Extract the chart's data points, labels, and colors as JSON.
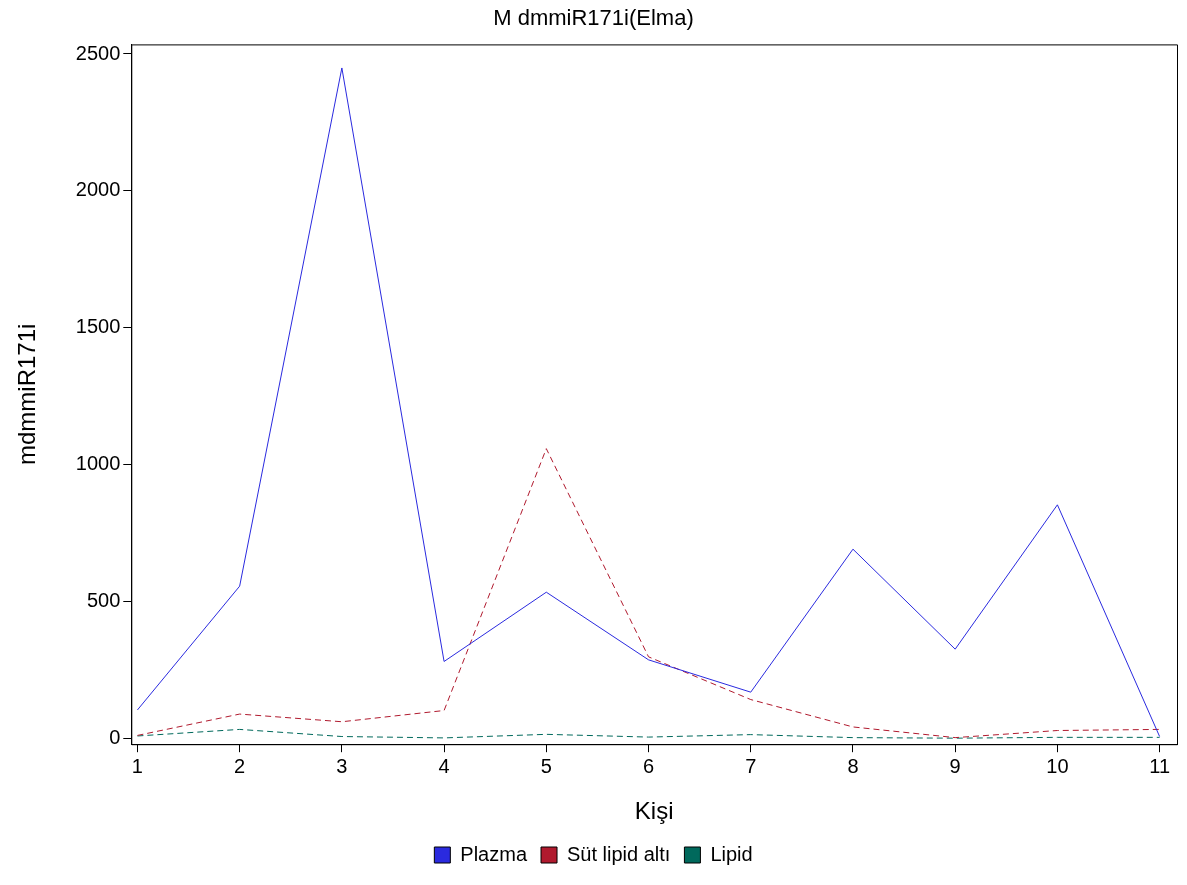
{
  "chart_data": {
    "type": "line",
    "title": "M dmmiR171i(Elma)",
    "xlabel": "Kişi",
    "ylabel": "mdmmiR171i",
    "x": [
      1,
      2,
      3,
      4,
      5,
      6,
      7,
      8,
      9,
      10,
      11
    ],
    "series": [
      {
        "name": "Plazma",
        "color": "#2a2adf",
        "line_style": "solid",
        "values": [
          105,
          557,
          2449,
          282,
          535,
          288,
          170,
          692,
          327,
          854,
          8
        ]
      },
      {
        "name": "Süt lipid altı",
        "color": "#b01a2e",
        "line_style": "dashed",
        "values": [
          12,
          90,
          62,
          103,
          1059,
          299,
          143,
          43,
          4,
          30,
          34
        ]
      },
      {
        "name": "Lipid",
        "color": "#00695c",
        "line_style": "dashed",
        "values": [
          10,
          34,
          8,
          3,
          16,
          6,
          15,
          4,
          2,
          5,
          5
        ]
      }
    ],
    "xlim": [
      0.94,
      11.17
    ],
    "xticks": [
      1,
      2,
      3,
      4,
      5,
      6,
      7,
      8,
      9,
      10,
      11
    ],
    "ylim": [
      -20,
      2535
    ],
    "yticks": [
      0,
      500,
      1000,
      1500,
      2000,
      2500
    ],
    "grid": false,
    "legend": "bottom",
    "marker": "none"
  }
}
